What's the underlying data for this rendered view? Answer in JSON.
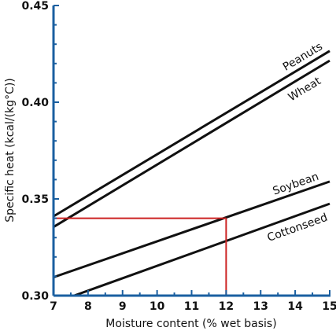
{
  "chart_data": {
    "type": "line",
    "xlabel": "Moisture content (% wet basis)",
    "ylabel": "Specific heat (kcal/(kg°C))",
    "xlim": [
      7,
      15
    ],
    "ylim": [
      0.3,
      0.45
    ],
    "x_ticks": [
      "7",
      "8",
      "9",
      "10",
      "11",
      "12",
      "13",
      "14",
      "15"
    ],
    "y_ticks": [
      "0.30",
      "0.35",
      "0.40",
      "0.45"
    ],
    "grid": false,
    "series": [
      {
        "name": "Peanuts",
        "x": [
          7,
          15
        ],
        "y": [
          0.341,
          0.4265
        ]
      },
      {
        "name": "Wheat",
        "x": [
          7,
          15
        ],
        "y": [
          0.3355,
          0.4215
        ]
      },
      {
        "name": "Soybean",
        "x": [
          7,
          15
        ],
        "y": [
          0.3095,
          0.359
        ]
      },
      {
        "name": "Cottonseed",
        "x": [
          7.6,
          15
        ],
        "y": [
          0.3,
          0.3475
        ]
      }
    ],
    "reference_lines": {
      "x": 12,
      "y": 0.34,
      "color": "#cc2222"
    },
    "colors": {
      "axis": "#1a5fa0",
      "series": "#111111",
      "reference": "#cc2222"
    }
  }
}
